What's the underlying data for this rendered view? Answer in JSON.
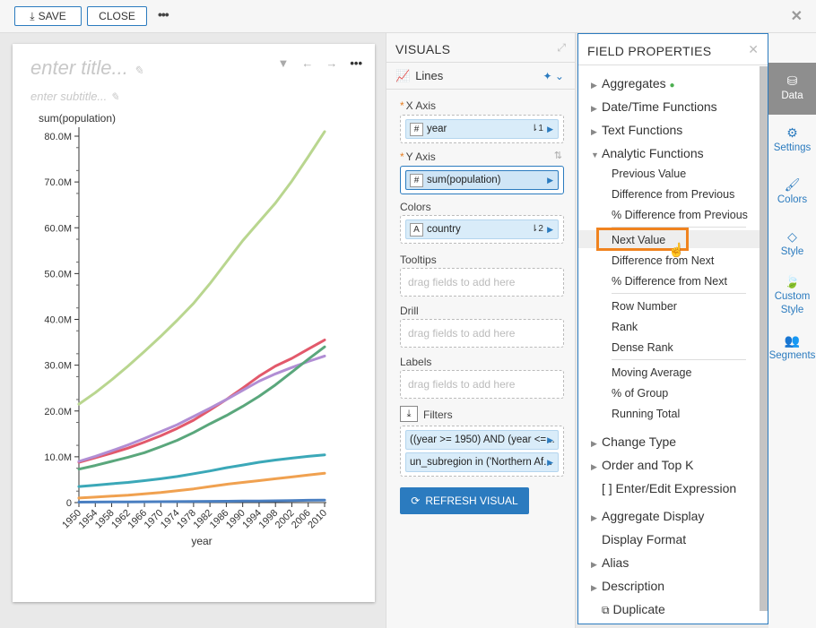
{
  "toolbar": {
    "save_label": "SAVE",
    "close_label": "CLOSE",
    "more": "•••",
    "close_x": "✕"
  },
  "card": {
    "title_placeholder": "enter title...",
    "subtitle_placeholder": "enter subtitle...",
    "more": "•••"
  },
  "chart_data": {
    "type": "line",
    "ylabel": "sum(population)",
    "xlabel": "year",
    "ylim": [
      0,
      80000000
    ],
    "y_ticks": [
      "80.0M",
      "70.0M",
      "60.0M",
      "50.0M",
      "40.0M",
      "30.0M",
      "20.0M",
      "10.0M",
      "0"
    ],
    "x": [
      1950,
      1954,
      1958,
      1962,
      1966,
      1970,
      1974,
      1978,
      1982,
      1986,
      1990,
      1994,
      1998,
      2002,
      2006,
      2010
    ],
    "series": [
      {
        "color": "#b9d68f",
        "values": [
          21.5,
          24,
          26.8,
          29.8,
          33,
          36.3,
          39.8,
          43.5,
          47.8,
          52.5,
          57.2,
          61.3,
          65.4,
          70.2,
          75.5,
          81
        ]
      },
      {
        "color": "#e2596b",
        "values": [
          8.8,
          9.8,
          10.8,
          11.9,
          13.2,
          14.6,
          16.2,
          18,
          20.2,
          22.5,
          25,
          27.6,
          29.8,
          31.5,
          33.5,
          35.5
        ]
      },
      {
        "color": "#b18ed4",
        "values": [
          9,
          10.1,
          11.3,
          12.6,
          14,
          15.5,
          17,
          18.8,
          20.6,
          22.5,
          24.5,
          26.5,
          28.1,
          29.5,
          30.8,
          32
        ]
      },
      {
        "color": "#5aa77c",
        "values": [
          7.3,
          8.1,
          9,
          9.9,
          10.9,
          12.2,
          13.6,
          15.3,
          17.2,
          19,
          21,
          23.2,
          25.7,
          28.5,
          31.3,
          34
        ]
      },
      {
        "color": "#3ba8b8",
        "values": [
          3.5,
          3.8,
          4.1,
          4.4,
          4.8,
          5.2,
          5.7,
          6.3,
          6.9,
          7.6,
          8.2,
          8.8,
          9.3,
          9.7,
          10.1,
          10.4
        ]
      },
      {
        "color": "#f0a150",
        "values": [
          1,
          1.2,
          1.4,
          1.6,
          1.9,
          2.2,
          2.6,
          3,
          3.5,
          4,
          4.4,
          4.8,
          5.2,
          5.6,
          6,
          6.4
        ]
      },
      {
        "color": "#4a7fc1",
        "values": [
          0.1,
          0.12,
          0.14,
          0.16,
          0.18,
          0.2,
          0.22,
          0.24,
          0.27,
          0.3,
          0.33,
          0.36,
          0.4,
          0.45,
          0.5,
          0.55
        ]
      }
    ]
  },
  "visuals": {
    "header": "VISUALS",
    "chart_type": "Lines",
    "x_axis": {
      "label": "X Axis",
      "field": "year",
      "type_icon": "#",
      "sort": "⇂1"
    },
    "y_axis": {
      "label": "Y Axis",
      "field": "sum(population)",
      "type_icon": "#"
    },
    "colors": {
      "label": "Colors",
      "field": "country",
      "type_icon": "A",
      "sort": "⇂2"
    },
    "tooltips": {
      "label": "Tooltips",
      "placeholder": "drag fields to add here"
    },
    "drill": {
      "label": "Drill",
      "placeholder": "drag fields to add here"
    },
    "labels": {
      "label": "Labels",
      "placeholder": "drag fields to add here"
    },
    "filters": {
      "label": "Filters",
      "items": [
        "((year >= 1950) AND (year <=...",
        "un_subregion in ('Northern Af..."
      ]
    },
    "refresh_label": "REFRESH VISUAL"
  },
  "field_properties": {
    "header": "FIELD PROPERTIES",
    "items": [
      "Aggregates",
      "Date/Time Functions",
      "Text Functions",
      "Analytic Functions",
      "Previous Value",
      "Difference from Previous",
      "% Difference from Previous",
      "Next Value",
      "Difference from Next",
      "% Difference from Next",
      "Row Number",
      "Rank",
      "Dense Rank",
      "Moving Average",
      "% of Group",
      "Running Total",
      "Change Type",
      "Order and Top K",
      "[ ] Enter/Edit Expression",
      "Aggregate Display",
      "Display Format",
      "Alias",
      "Description",
      "Duplicate"
    ],
    "aggregates_dot_color": "#4caf50",
    "highlight_color": "#f0831f"
  },
  "sidebar": {
    "items": [
      {
        "label": "Data"
      },
      {
        "label": "Settings"
      },
      {
        "label": "Colors"
      },
      {
        "label": "Style"
      },
      {
        "label": "Custom Style"
      },
      {
        "label": "Segments"
      }
    ]
  }
}
